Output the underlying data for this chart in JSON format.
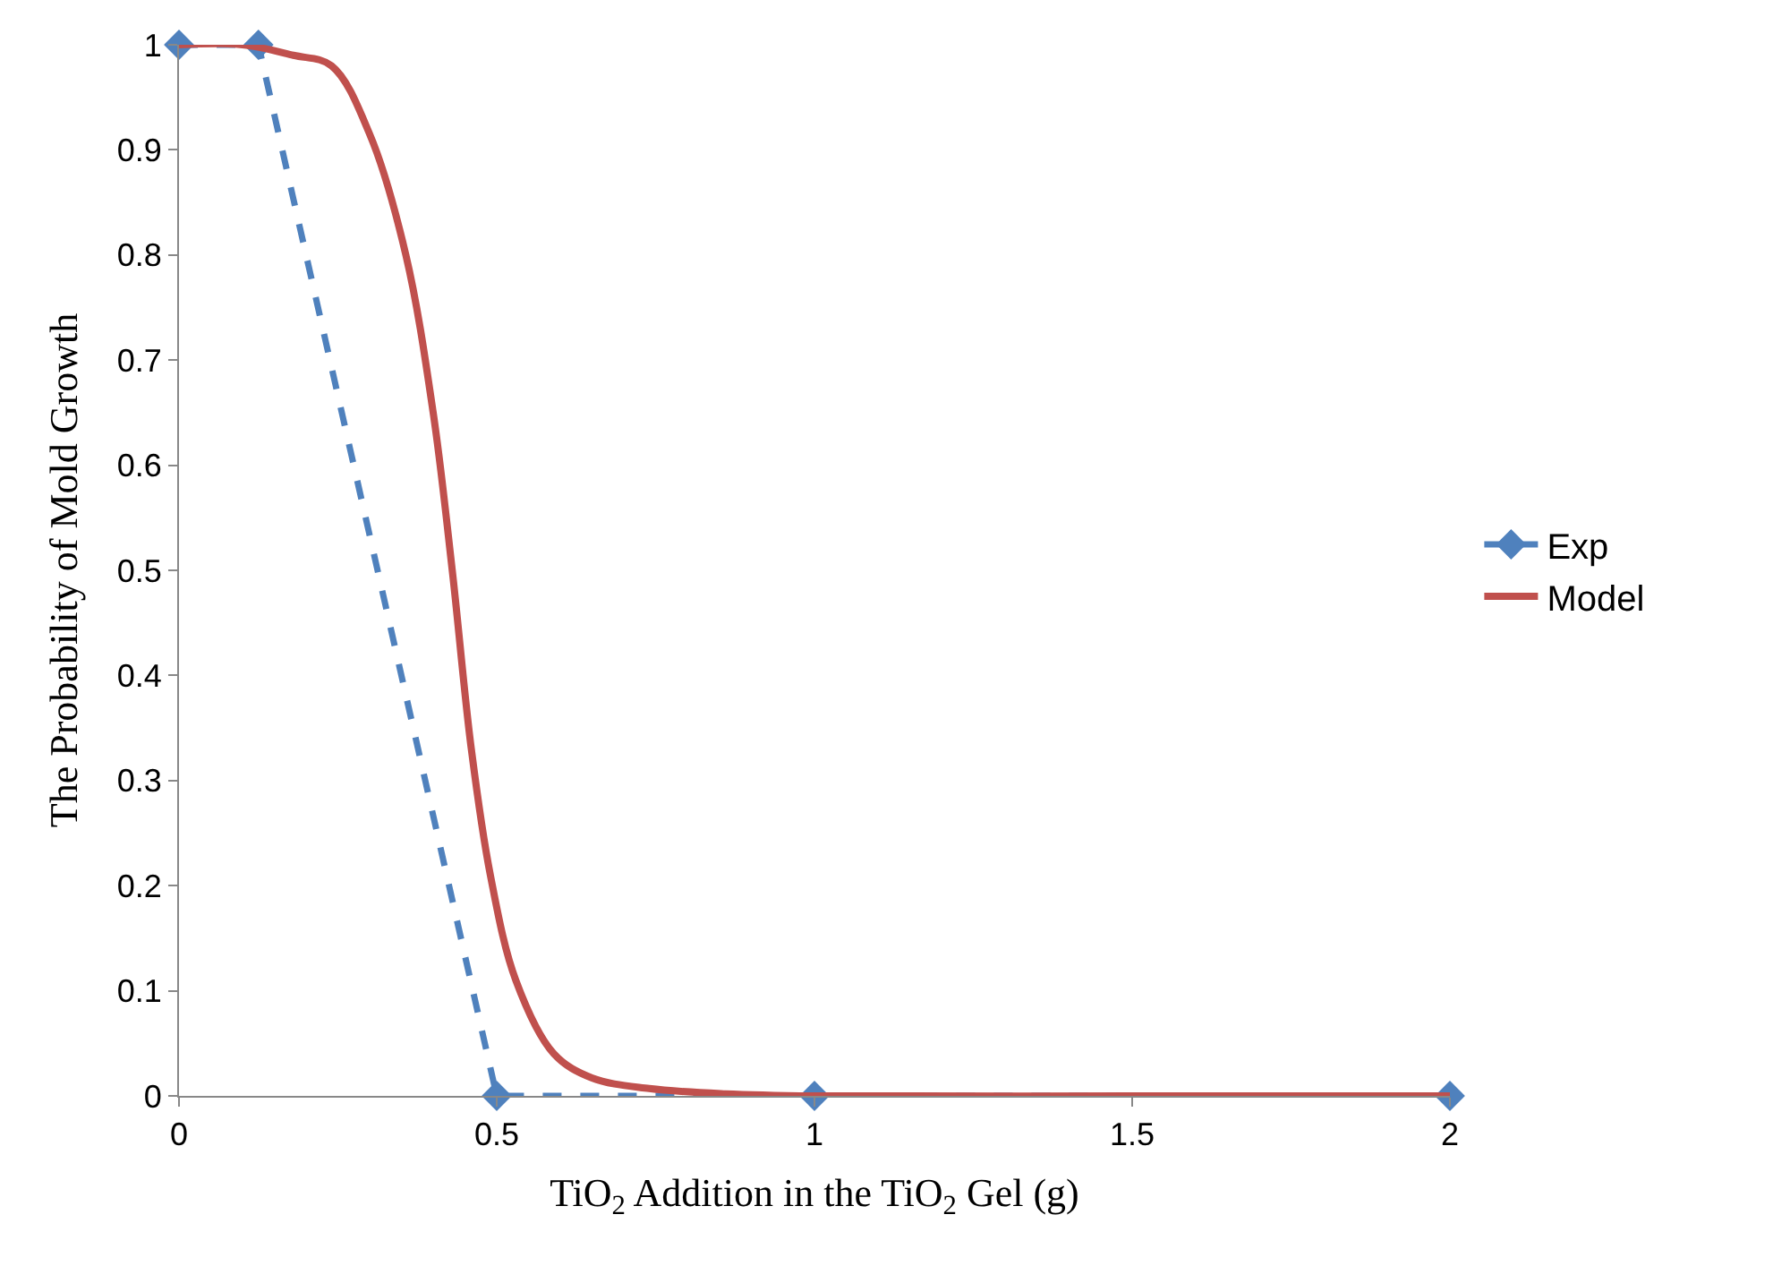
{
  "chart_data": {
    "type": "line",
    "xlabel": "TiO$_{2}$ Addition in the TiO$_{2}$ Gel (g)",
    "ylabel": "The Probability of Mold Growth",
    "xlim": [
      0,
      2
    ],
    "xticks": [
      0,
      0.5,
      1,
      1.5,
      2
    ],
    "ylim": [
      0,
      1
    ],
    "yticks": [
      0,
      0.1,
      0.2,
      0.3,
      0.4,
      0.5,
      0.6,
      0.7,
      0.8,
      0.9,
      1
    ],
    "legend": "right",
    "series": [
      {
        "name": "Exp",
        "color": "#4f81bd",
        "line_style": "dashed",
        "marker": "diamond",
        "x": [
          0,
          0.125,
          0.5,
          1,
          2
        ],
        "values": [
          1,
          1,
          0,
          0,
          0
        ]
      },
      {
        "name": "Model",
        "color": "#c0504d",
        "line_style": "solid",
        "marker": "none",
        "x": [
          0,
          0.1,
          0.18,
          0.24,
          0.3,
          0.357,
          0.4,
          0.43,
          0.46,
          0.49,
          0.53,
          0.59,
          0.65,
          0.74,
          0.86,
          1,
          1.5,
          2
        ],
        "values": [
          1,
          1,
          0.99,
          0.98,
          0.915,
          0.8,
          0.65,
          0.5,
          0.33,
          0.21,
          0.11,
          0.04,
          0.017,
          0.007,
          0.002,
          0,
          0,
          0
        ]
      }
    ]
  }
}
